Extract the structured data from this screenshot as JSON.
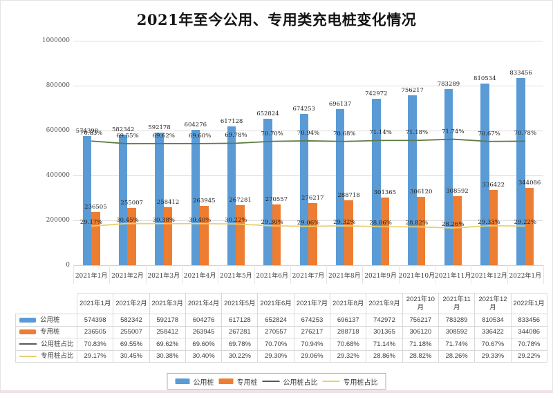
{
  "page": {
    "title": "2021年至今公用、专用类充电桩变化情况"
  },
  "chart_data": {
    "type": "combo",
    "title": "2021年至今公用、专用类充电桩变化情况",
    "categories": [
      "2021年1月",
      "2021年2月",
      "2021年3月",
      "2021年4月",
      "2021年5月",
      "2021年6月",
      "2021年7月",
      "2021年8月",
      "2021年9月",
      "2021年10月",
      "2021年11月",
      "2021年12月",
      "2022年1月"
    ],
    "series": [
      {
        "name": "公用桩",
        "type": "bar",
        "color": "#5B9BD5",
        "values": [
          574398,
          582342,
          592178,
          604276,
          617128,
          652824,
          674253,
          696137,
          742972,
          756217,
          783289,
          810534,
          833456
        ]
      },
      {
        "name": "专用桩",
        "type": "bar",
        "color": "#ED7D31",
        "values": [
          236505,
          255007,
          258412,
          263945,
          267281,
          270557,
          276217,
          288718,
          301365,
          306120,
          308592,
          336422,
          344086
        ]
      },
      {
        "name": "公用桩占比",
        "type": "line",
        "color": "#5C7B43",
        "legend_color": "#595959",
        "unit": "%",
        "values": [
          70.83,
          69.55,
          69.62,
          69.6,
          69.78,
          70.7,
          70.94,
          70.68,
          71.14,
          71.18,
          71.74,
          70.67,
          70.78
        ]
      },
      {
        "name": "专用桩占比",
        "type": "line",
        "color": "#E8D070",
        "legend_color": "#E8D070",
        "unit": "%",
        "values": [
          29.17,
          30.45,
          30.38,
          30.4,
          30.22,
          29.3,
          29.06,
          29.32,
          28.86,
          28.82,
          28.26,
          29.33,
          29.22
        ]
      }
    ],
    "y_axis": {
      "min": 0,
      "max": 1000000,
      "step": 200000,
      "tick_labels": [
        "0",
        "200000",
        "400000",
        "600000",
        "800000",
        "1000000"
      ]
    },
    "secondary_axis_hidden": {
      "min": 10,
      "max": 120
    },
    "grid": true,
    "legend_position": "bottom"
  }
}
